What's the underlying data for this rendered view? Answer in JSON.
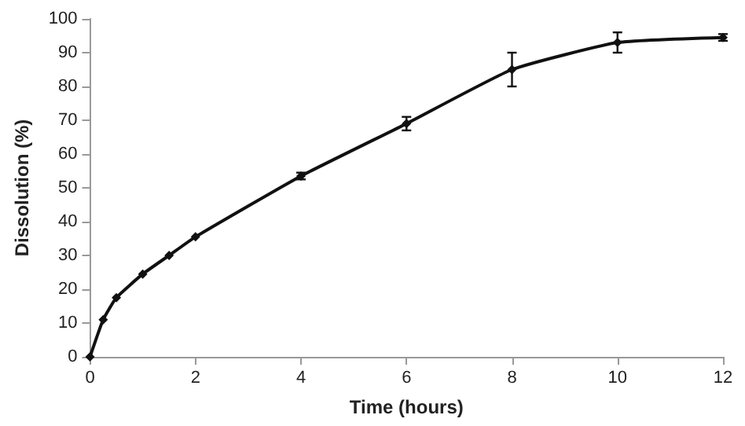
{
  "chart_data": {
    "type": "line",
    "xlabel": "Time (hours)",
    "ylabel": "Dissolution (%)",
    "x": [
      0,
      0.25,
      0.5,
      1,
      1.5,
      2,
      4,
      6,
      8,
      10,
      12
    ],
    "values": [
      0,
      11,
      17.5,
      24.5,
      30,
      35.5,
      53.5,
      69,
      85,
      93,
      94.5
    ],
    "errors": [
      null,
      null,
      null,
      null,
      null,
      null,
      1,
      2,
      5,
      3,
      1
    ],
    "color": "#111111",
    "marker": "diamond",
    "line_style": "solid",
    "grid": false,
    "xlim": [
      0,
      12
    ],
    "xticks": [
      0,
      2,
      4,
      6,
      8,
      10,
      12
    ],
    "ylim": [
      0,
      100
    ],
    "yticks": [
      0,
      10,
      20,
      30,
      40,
      50,
      60,
      70,
      80,
      90,
      100
    ]
  }
}
